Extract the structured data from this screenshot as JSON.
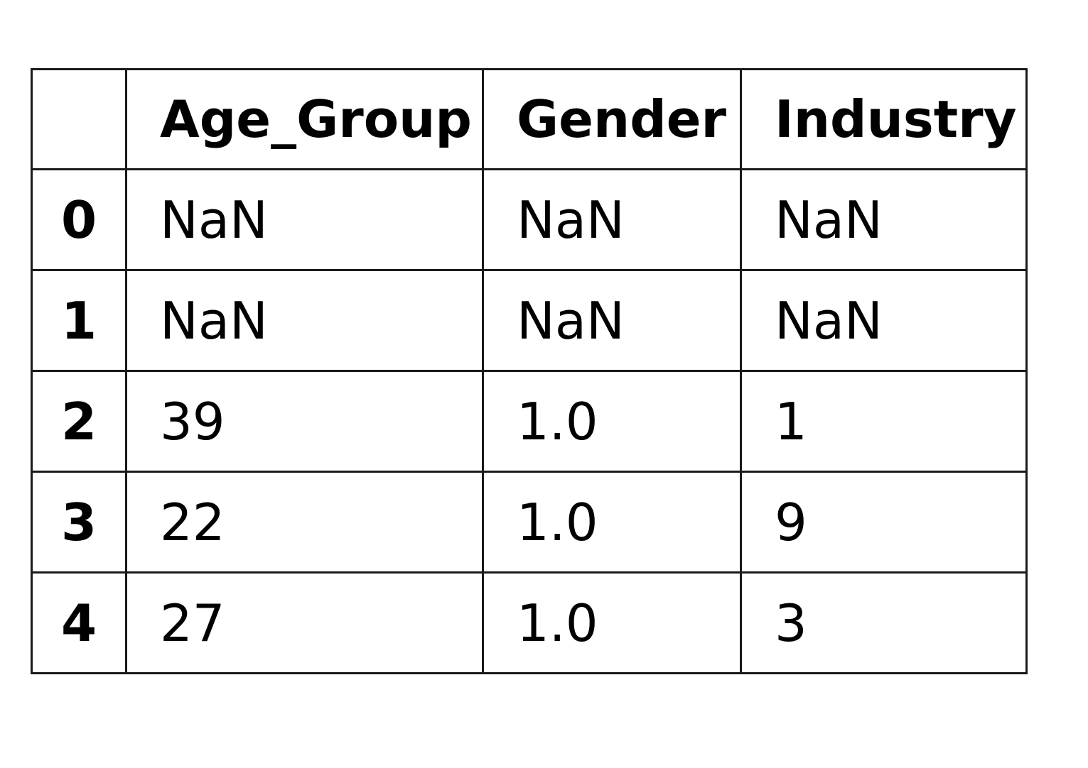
{
  "table": {
    "columns": [
      "Age_Group",
      "Gender",
      "Industry"
    ],
    "rows": [
      {
        "index": "0",
        "cells": [
          "NaN",
          "NaN",
          "NaN"
        ]
      },
      {
        "index": "1",
        "cells": [
          "NaN",
          "NaN",
          "NaN"
        ]
      },
      {
        "index": "2",
        "cells": [
          "39",
          "1.0",
          "1"
        ]
      },
      {
        "index": "3",
        "cells": [
          "22",
          "1.0",
          "9"
        ]
      },
      {
        "index": "4",
        "cells": [
          "27",
          "1.0",
          "3"
        ]
      }
    ]
  },
  "chart_data": {
    "type": "table",
    "columns": [
      "Age_Group",
      "Gender",
      "Industry"
    ],
    "index": [
      "0",
      "1",
      "2",
      "3",
      "4"
    ],
    "rows": [
      [
        "NaN",
        "NaN",
        "NaN"
      ],
      [
        "NaN",
        "NaN",
        "NaN"
      ],
      [
        "39",
        "1.0",
        "1"
      ],
      [
        "22",
        "1.0",
        "9"
      ],
      [
        "27",
        "1.0",
        "3"
      ]
    ]
  }
}
